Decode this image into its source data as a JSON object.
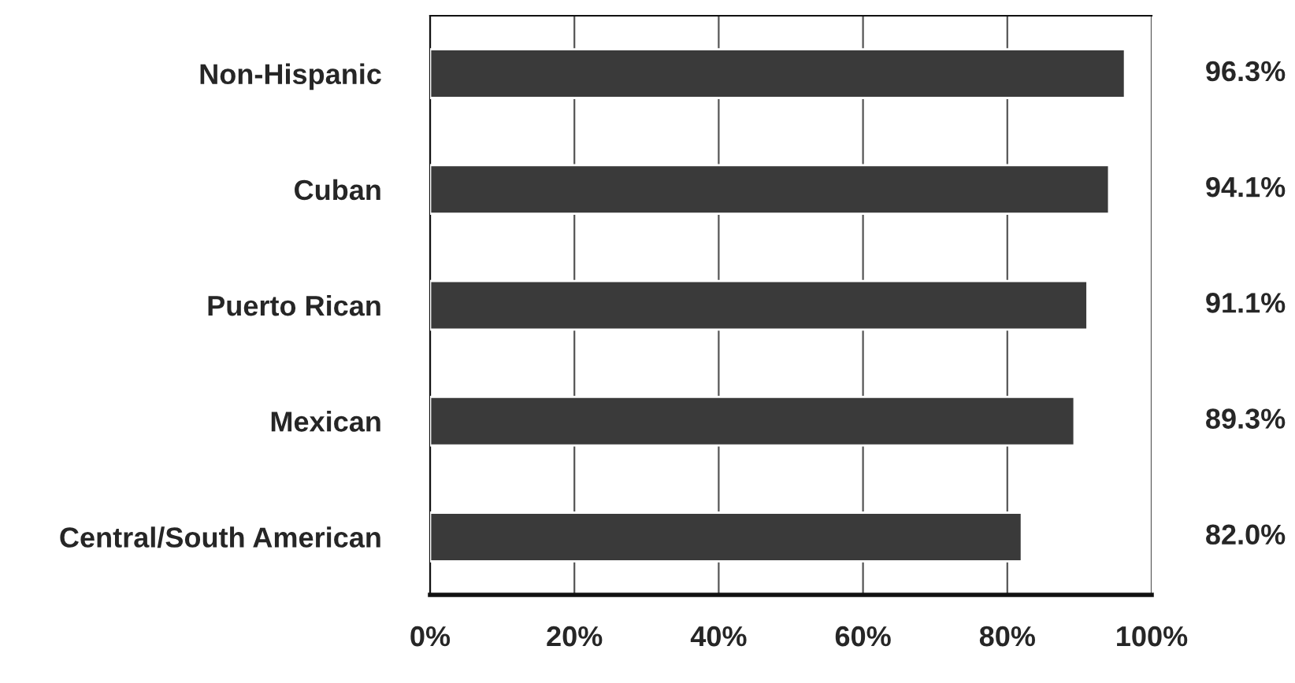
{
  "chart_data": {
    "type": "bar",
    "orientation": "horizontal",
    "categories": [
      "Non-Hispanic",
      "Cuban",
      "Puerto Rican",
      "Mexican",
      "Central/South American"
    ],
    "values": [
      96.3,
      94.1,
      91.1,
      89.3,
      82.0
    ],
    "value_labels": [
      "96.3%",
      "94.1%",
      "91.1%",
      "89.3%",
      "82.0%"
    ],
    "color": "#3a3a3a",
    "xlim": [
      0,
      100
    ],
    "xticks": [
      {
        "value": 0,
        "label": "0%"
      },
      {
        "value": 20,
        "label": "20%"
      },
      {
        "value": 40,
        "label": "40%"
      },
      {
        "value": 60,
        "label": "60%"
      },
      {
        "value": 80,
        "label": "80%"
      },
      {
        "value": 100,
        "label": "100%"
      }
    ],
    "grid": "x",
    "legend": false
  }
}
